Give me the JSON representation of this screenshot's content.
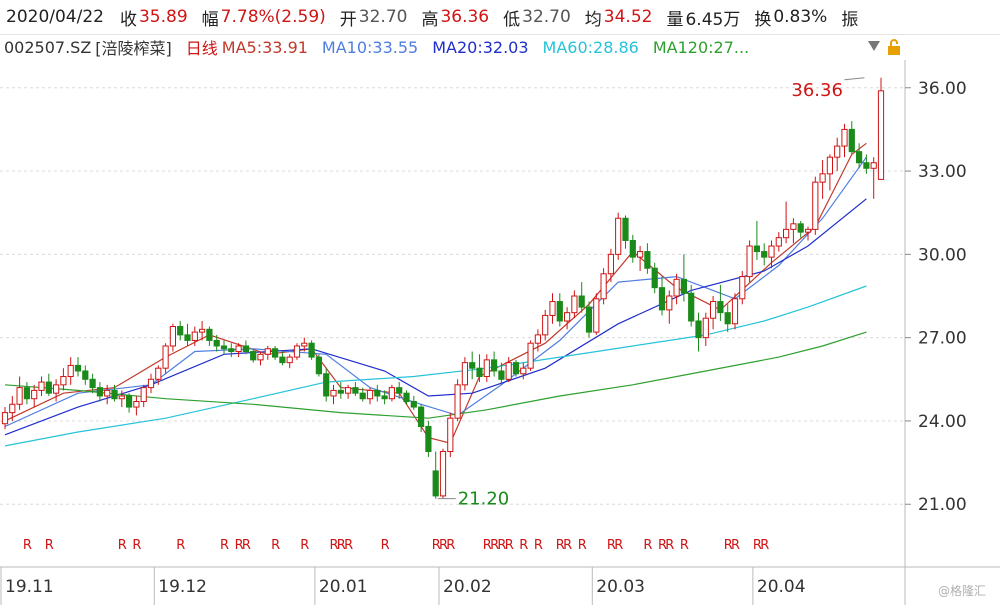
{
  "quote": {
    "date": "2020/04/22",
    "close_label": "收",
    "close": "35.89",
    "amp_label": "幅",
    "amp": "7.78%(2.59)",
    "open_label": "开",
    "open": "32.70",
    "high_label": "高",
    "high": "36.36",
    "low_label": "低",
    "low": "32.70",
    "avg_label": "均",
    "avg": "34.52",
    "vol_label": "量",
    "vol": "6.45万",
    "turn_label": "换",
    "turn": "0.83%",
    "more_label": "振"
  },
  "ma_bar": {
    "code": "002507.SZ",
    "name": "[涪陵榨菜]",
    "period": "日线",
    "ma5": "MA5:33.91",
    "ma10": "MA10:33.55",
    "ma20": "MA20:32.03",
    "ma60": "MA60:28.86",
    "ma120": "MA120:27..."
  },
  "colors": {
    "up": "#d01414",
    "down": "#1a8a1a",
    "ma5": "#c0392b",
    "ma10": "#4f7ee0",
    "ma20": "#1f2ecc",
    "ma60": "#27c3d9",
    "ma120": "#2ea02e",
    "grid": "#dcdcdc"
  },
  "icons": [
    "menu-triangle-icon",
    "lock-icon"
  ],
  "watermark": "@格隆汇",
  "chart_data": {
    "type": "candlestick",
    "y_ticks": [
      "36.00",
      "33.00",
      "30.00",
      "27.00",
      "24.00",
      "21.00"
    ],
    "ylim": [
      20.0,
      37.0
    ],
    "x_labels": [
      {
        "label": "19.11",
        "index": 0
      },
      {
        "label": "19.12",
        "index": 21
      },
      {
        "label": "20.01",
        "index": 43
      },
      {
        "label": "20.02",
        "index": 60
      },
      {
        "label": "20.03",
        "index": 81
      },
      {
        "label": "20.04",
        "index": 103
      }
    ],
    "high_marker": {
      "label": "36.36",
      "value": 36.36,
      "index": 118
    },
    "low_marker": {
      "label": "21.20",
      "value": 21.2,
      "index": 59
    },
    "candles": [
      [
        23.9,
        24.5,
        23.7,
        24.3
      ],
      [
        24.3,
        24.9,
        24.0,
        24.6
      ],
      [
        24.6,
        25.6,
        24.4,
        25.2
      ],
      [
        25.2,
        25.4,
        24.6,
        24.8
      ],
      [
        24.8,
        25.3,
        24.5,
        25.1
      ],
      [
        25.1,
        25.6,
        24.9,
        25.4
      ],
      [
        25.4,
        25.7,
        24.9,
        25.0
      ],
      [
        25.0,
        25.5,
        24.7,
        25.3
      ],
      [
        25.3,
        25.9,
        25.1,
        25.6
      ],
      [
        25.6,
        26.3,
        25.3,
        26.0
      ],
      [
        26.0,
        26.3,
        25.6,
        25.8
      ],
      [
        25.8,
        26.0,
        25.3,
        25.5
      ],
      [
        25.5,
        25.7,
        25.0,
        25.2
      ],
      [
        25.2,
        25.4,
        24.7,
        24.9
      ],
      [
        24.9,
        25.3,
        24.6,
        25.1
      ],
      [
        25.1,
        25.3,
        24.7,
        24.8
      ],
      [
        24.8,
        25.1,
        24.5,
        24.9
      ],
      [
        24.9,
        25.0,
        24.3,
        24.5
      ],
      [
        24.5,
        24.9,
        24.2,
        24.7
      ],
      [
        24.7,
        25.3,
        24.5,
        25.2
      ],
      [
        25.2,
        25.7,
        25.0,
        25.5
      ],
      [
        25.5,
        26.0,
        25.3,
        25.9
      ],
      [
        25.9,
        26.8,
        25.7,
        26.7
      ],
      [
        26.7,
        27.5,
        26.5,
        27.4
      ],
      [
        27.4,
        27.6,
        26.9,
        27.1
      ],
      [
        27.1,
        27.5,
        26.7,
        26.9
      ],
      [
        26.9,
        27.4,
        26.7,
        27.2
      ],
      [
        27.2,
        27.6,
        26.9,
        27.3
      ],
      [
        27.3,
        27.4,
        26.7,
        26.9
      ],
      [
        26.9,
        27.1,
        26.5,
        26.7
      ],
      [
        26.7,
        26.9,
        26.4,
        26.6
      ],
      [
        26.6,
        26.8,
        26.3,
        26.5
      ],
      [
        26.5,
        26.8,
        26.3,
        26.7
      ],
      [
        26.7,
        26.9,
        26.4,
        26.5
      ],
      [
        26.5,
        26.6,
        26.1,
        26.2
      ],
      [
        26.2,
        26.5,
        26.0,
        26.4
      ],
      [
        26.4,
        26.7,
        26.2,
        26.6
      ],
      [
        26.6,
        26.7,
        26.2,
        26.3
      ],
      [
        26.3,
        26.5,
        26.0,
        26.1
      ],
      [
        26.1,
        26.4,
        25.9,
        26.3
      ],
      [
        26.3,
        26.8,
        26.2,
        26.7
      ],
      [
        26.7,
        27.0,
        26.5,
        26.8
      ],
      [
        26.8,
        26.9,
        26.2,
        26.3
      ],
      [
        26.3,
        26.4,
        25.6,
        25.7
      ],
      [
        25.7,
        25.9,
        24.7,
        24.9
      ],
      [
        24.9,
        25.3,
        24.6,
        25.1
      ],
      [
        25.1,
        25.4,
        24.8,
        25.0
      ],
      [
        25.0,
        25.3,
        24.8,
        25.2
      ],
      [
        25.2,
        25.4,
        24.9,
        25.0
      ],
      [
        25.0,
        25.2,
        24.7,
        24.8
      ],
      [
        24.8,
        25.2,
        24.6,
        25.1
      ],
      [
        25.1,
        25.3,
        24.7,
        24.9
      ],
      [
        24.9,
        25.1,
        24.6,
        24.8
      ],
      [
        24.8,
        25.3,
        24.7,
        25.2
      ],
      [
        25.2,
        25.4,
        24.8,
        25.0
      ],
      [
        25.0,
        25.1,
        24.6,
        24.7
      ],
      [
        24.7,
        24.9,
        24.4,
        24.5
      ],
      [
        24.5,
        24.6,
        23.6,
        23.8
      ],
      [
        23.8,
        24.0,
        22.7,
        22.9
      ],
      [
        22.2,
        22.9,
        21.2,
        21.3
      ],
      [
        21.3,
        23.0,
        21.2,
        22.9
      ],
      [
        22.9,
        24.3,
        22.7,
        24.1
      ],
      [
        24.1,
        25.5,
        24.0,
        25.3
      ],
      [
        25.3,
        26.3,
        25.1,
        26.1
      ],
      [
        26.1,
        26.5,
        25.5,
        25.9
      ],
      [
        25.9,
        26.4,
        25.4,
        25.6
      ],
      [
        25.6,
        26.4,
        25.4,
        26.2
      ],
      [
        26.2,
        26.5,
        25.6,
        25.8
      ],
      [
        25.8,
        26.1,
        25.3,
        25.5
      ],
      [
        25.5,
        26.3,
        25.4,
        26.1
      ],
      [
        26.1,
        26.2,
        25.6,
        25.7
      ],
      [
        25.7,
        26.1,
        25.5,
        25.9
      ],
      [
        25.9,
        26.9,
        25.8,
        26.8
      ],
      [
        26.8,
        27.3,
        26.5,
        27.1
      ],
      [
        27.1,
        28.0,
        26.9,
        27.8
      ],
      [
        27.8,
        28.6,
        27.5,
        28.3
      ],
      [
        28.3,
        28.6,
        27.4,
        27.6
      ],
      [
        27.6,
        28.1,
        27.3,
        27.9
      ],
      [
        27.9,
        28.7,
        27.7,
        28.5
      ],
      [
        28.5,
        29.0,
        27.9,
        28.1
      ],
      [
        28.1,
        28.3,
        27.0,
        27.2
      ],
      [
        27.2,
        28.6,
        27.1,
        28.4
      ],
      [
        28.4,
        29.5,
        28.2,
        29.3
      ],
      [
        29.3,
        30.2,
        29.0,
        30.0
      ],
      [
        30.0,
        31.5,
        29.8,
        31.3
      ],
      [
        31.3,
        31.4,
        30.2,
        30.5
      ],
      [
        30.5,
        30.7,
        29.7,
        29.9
      ],
      [
        29.9,
        30.3,
        29.4,
        30.1
      ],
      [
        30.1,
        30.4,
        29.3,
        29.5
      ],
      [
        29.5,
        29.7,
        28.6,
        28.8
      ],
      [
        28.8,
        29.2,
        27.8,
        28.0
      ],
      [
        28.0,
        28.7,
        27.5,
        28.5
      ],
      [
        28.5,
        29.3,
        28.2,
        29.1
      ],
      [
        29.1,
        30.0,
        28.3,
        28.6
      ],
      [
        28.6,
        28.9,
        27.4,
        27.6
      ],
      [
        27.6,
        27.9,
        26.5,
        27.0
      ],
      [
        27.0,
        27.9,
        26.7,
        27.7
      ],
      [
        27.7,
        28.5,
        27.3,
        28.3
      ],
      [
        28.3,
        28.9,
        27.6,
        27.9
      ],
      [
        27.9,
        28.2,
        27.2,
        27.5
      ],
      [
        27.5,
        28.6,
        27.3,
        28.4
      ],
      [
        28.4,
        29.4,
        28.2,
        29.2
      ],
      [
        29.2,
        30.5,
        29.0,
        30.3
      ],
      [
        30.3,
        31.2,
        29.8,
        30.1
      ],
      [
        30.1,
        30.4,
        29.6,
        29.9
      ],
      [
        29.9,
        30.5,
        29.5,
        30.3
      ],
      [
        30.3,
        30.8,
        30.1,
        30.6
      ],
      [
        30.6,
        31.9,
        30.4,
        30.9
      ],
      [
        30.9,
        31.3,
        30.4,
        31.1
      ],
      [
        31.1,
        31.2,
        30.6,
        30.8
      ],
      [
        30.8,
        31.0,
        30.5,
        30.9
      ],
      [
        30.9,
        32.8,
        30.7,
        32.6
      ],
      [
        32.6,
        33.4,
        32.0,
        32.9
      ],
      [
        32.9,
        33.6,
        32.3,
        33.5
      ],
      [
        33.5,
        34.2,
        33.0,
        33.9
      ],
      [
        33.9,
        34.7,
        33.5,
        34.5
      ],
      [
        34.5,
        34.8,
        33.6,
        33.7
      ],
      [
        33.7,
        34.0,
        33.1,
        33.3
      ],
      [
        33.3,
        33.6,
        32.9,
        33.1
      ],
      [
        33.1,
        33.5,
        32.0,
        33.3
      ],
      [
        32.7,
        36.36,
        32.7,
        35.89
      ]
    ],
    "ma_series": [
      {
        "name": "MA5",
        "points": [
          [
            0,
            24.0
          ],
          [
            8,
            25.0
          ],
          [
            15,
            25.2
          ],
          [
            22,
            26.3
          ],
          [
            28,
            27.1
          ],
          [
            36,
            26.4
          ],
          [
            42,
            26.6
          ],
          [
            46,
            25.2
          ],
          [
            54,
            25.0
          ],
          [
            58,
            23.4
          ],
          [
            61,
            23.2
          ],
          [
            65,
            25.6
          ],
          [
            74,
            26.8
          ],
          [
            80,
            28.2
          ],
          [
            86,
            30.1
          ],
          [
            92,
            28.8
          ],
          [
            98,
            28.0
          ],
          [
            105,
            29.7
          ],
          [
            111,
            31.0
          ],
          [
            116,
            33.6
          ],
          [
            118,
            34.0
          ]
        ]
      },
      {
        "name": "MA10",
        "points": [
          [
            0,
            23.8
          ],
          [
            10,
            25.0
          ],
          [
            20,
            25.3
          ],
          [
            26,
            26.5
          ],
          [
            34,
            26.6
          ],
          [
            44,
            26.4
          ],
          [
            50,
            25.2
          ],
          [
            57,
            24.6
          ],
          [
            62,
            24.2
          ],
          [
            68,
            25.3
          ],
          [
            76,
            26.9
          ],
          [
            84,
            29.0
          ],
          [
            92,
            29.2
          ],
          [
            100,
            28.4
          ],
          [
            106,
            29.6
          ],
          [
            112,
            31.3
          ],
          [
            118,
            33.5
          ]
        ]
      },
      {
        "name": "MA20",
        "points": [
          [
            0,
            23.5
          ],
          [
            10,
            24.5
          ],
          [
            20,
            25.3
          ],
          [
            30,
            26.4
          ],
          [
            42,
            26.6
          ],
          [
            52,
            25.8
          ],
          [
            58,
            24.9
          ],
          [
            64,
            25.0
          ],
          [
            74,
            25.9
          ],
          [
            84,
            27.5
          ],
          [
            94,
            28.7
          ],
          [
            104,
            29.4
          ],
          [
            110,
            30.3
          ],
          [
            118,
            32.0
          ]
        ]
      },
      {
        "name": "MA60",
        "points": [
          [
            0,
            23.1
          ],
          [
            10,
            23.6
          ],
          [
            22,
            24.1
          ],
          [
            34,
            24.8
          ],
          [
            44,
            25.4
          ],
          [
            56,
            25.6
          ],
          [
            66,
            25.9
          ],
          [
            76,
            26.3
          ],
          [
            86,
            26.7
          ],
          [
            96,
            27.1
          ],
          [
            104,
            27.6
          ],
          [
            110,
            28.1
          ],
          [
            118,
            28.86
          ]
        ]
      },
      {
        "name": "MA120",
        "points": [
          [
            0,
            25.3
          ],
          [
            10,
            25.1
          ],
          [
            22,
            24.8
          ],
          [
            34,
            24.6
          ],
          [
            46,
            24.3
          ],
          [
            58,
            24.1
          ],
          [
            66,
            24.4
          ],
          [
            76,
            24.9
          ],
          [
            86,
            25.3
          ],
          [
            96,
            25.8
          ],
          [
            106,
            26.3
          ],
          [
            112,
            26.7
          ],
          [
            118,
            27.2
          ]
        ]
      }
    ],
    "r_markers": [
      3,
      6,
      16,
      18,
      24,
      30,
      32,
      33,
      37,
      41,
      45,
      46,
      47,
      52,
      59,
      60,
      61,
      66,
      67,
      68,
      69,
      71,
      73,
      76,
      77,
      79,
      83,
      84,
      88,
      90,
      91,
      93,
      99,
      100,
      103,
      104
    ],
    "r_label": "R"
  }
}
